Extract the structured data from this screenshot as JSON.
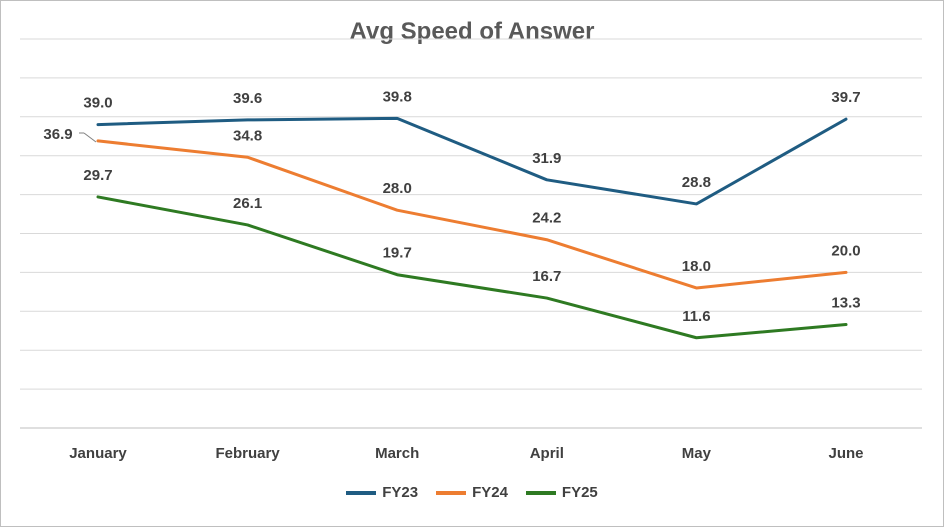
{
  "chart_data": {
    "type": "line",
    "title": "Avg Speed of Answer",
    "xlabel": "",
    "ylabel": "",
    "categories": [
      "January",
      "February",
      "March",
      "April",
      "May",
      "June"
    ],
    "ylim": [
      0,
      50
    ],
    "grid": true,
    "legend_position": "bottom",
    "series": [
      {
        "name": "FY23",
        "color": "#1f5c82",
        "values": [
          39.0,
          39.6,
          39.8,
          31.9,
          28.8,
          39.7
        ]
      },
      {
        "name": "FY24",
        "color": "#ed7d31",
        "values": [
          36.9,
          34.8,
          28.0,
          24.2,
          18.0,
          20.0
        ]
      },
      {
        "name": "FY25",
        "color": "#2e7a22",
        "values": [
          29.7,
          26.1,
          19.7,
          16.7,
          11.6,
          13.3
        ]
      }
    ]
  }
}
